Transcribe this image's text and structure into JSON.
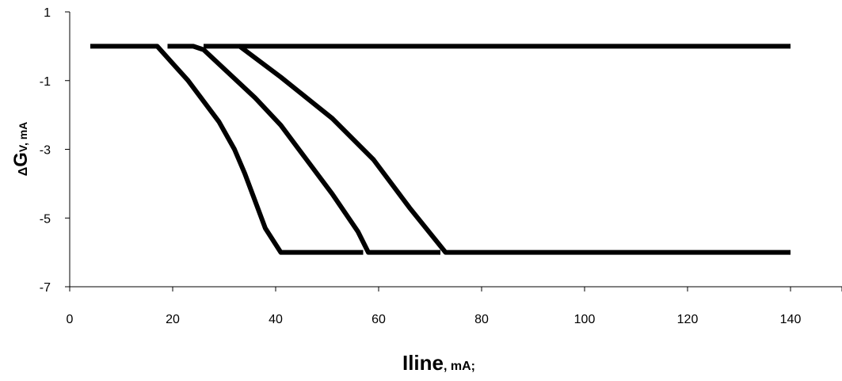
{
  "chart_data": {
    "type": "line",
    "title": "",
    "xlabel": {
      "main": "Iline",
      "sub": ", mA;"
    },
    "ylabel": {
      "prefix": "Δ",
      "main": "G",
      "sub": "V, mA"
    },
    "xlim": [
      0,
      150
    ],
    "ylim": [
      -7,
      1
    ],
    "xticks": [
      0,
      20,
      40,
      60,
      80,
      100,
      120,
      140
    ],
    "yticks": [
      1,
      -1,
      -3,
      -5,
      -7
    ],
    "grid": false,
    "legend": "none",
    "line_color": "#000000",
    "series": [
      {
        "x": [
          4,
          17,
          20,
          23,
          26,
          29,
          32,
          34,
          36,
          38,
          41,
          43,
          45,
          47,
          49,
          51,
          53,
          55,
          57
        ],
        "y": [
          0,
          0,
          -0.5,
          -1,
          -1.6,
          -2.2,
          -3,
          -3.7,
          -4.5,
          -5.3,
          -6,
          -6,
          -6,
          -6,
          -6,
          -6,
          -6,
          -6,
          -6
        ]
      },
      {
        "x": [
          19,
          24,
          26,
          31,
          36,
          41,
          46,
          51,
          56,
          58,
          60,
          64,
          68,
          72
        ],
        "y": [
          0,
          0,
          -0.1,
          -0.8,
          -1.5,
          -2.3,
          -3.3,
          -4.3,
          -5.4,
          -6,
          -6,
          -6,
          -6,
          -6
        ]
      },
      {
        "x": [
          26,
          31,
          33,
          41,
          51,
          59,
          66,
          73,
          75,
          90,
          110,
          140
        ],
        "y": [
          0,
          0,
          0,
          -0.9,
          -2.1,
          -3.3,
          -4.7,
          -6,
          -6,
          -6,
          -6,
          -6
        ]
      },
      {
        "x": [
          33,
          50,
          80,
          110,
          140
        ],
        "y": [
          0,
          0,
          0,
          0,
          0
        ]
      }
    ]
  }
}
